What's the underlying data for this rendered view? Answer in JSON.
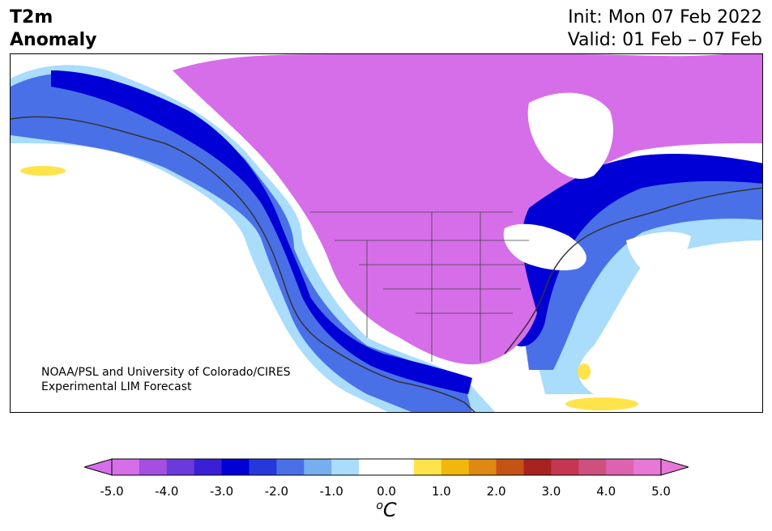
{
  "header": {
    "title_line1": "T2m",
    "title_line2": "Anomaly",
    "init": "Init: Mon 07 Feb 2022",
    "valid": "Valid: 01 Feb – 07 Feb"
  },
  "map": {
    "credit_line1": "NOAA/PSL and University of Colorado/CIRES",
    "credit_line2": "Experimental LIM Forecast"
  },
  "colorbar": {
    "ticks": [
      "-5.0",
      "-4.0",
      "-3.0",
      "-2.0",
      "-1.0",
      "0.0",
      "1.0",
      "2.0",
      "3.0",
      "4.0",
      "5.0"
    ],
    "unit_base": "C",
    "unit_sup": "o",
    "colors": [
      "#d66ee9",
      "#a54ee0",
      "#6b3adc",
      "#3b1fd4",
      "#0000d6",
      "#2638dc",
      "#4a70e8",
      "#77aef0",
      "#aadcfb",
      "#ffffff",
      "#ffffff",
      "#fee34a",
      "#f2b70c",
      "#df8812",
      "#c55316",
      "#a8221f",
      "#c43652",
      "#cf4f7f",
      "#dc63b0",
      "#e778d8"
    ]
  },
  "colors": {
    "strong_cold": "#d66ee9",
    "cold": "#0000d6",
    "mild_cold": "#aadcfb",
    "warm": "#fee34a"
  }
}
